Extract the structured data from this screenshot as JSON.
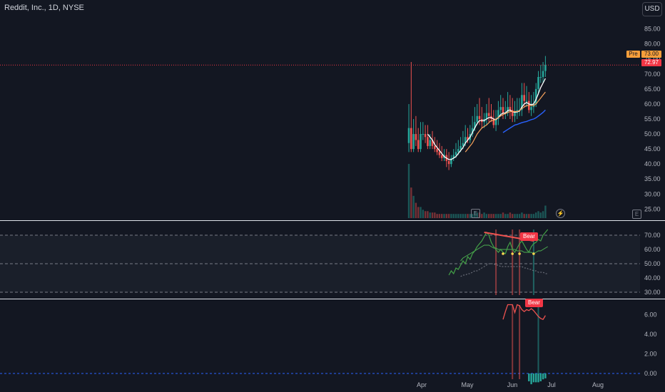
{
  "header": {
    "title": "Reddit, Inc., 1D, NYSE",
    "currency_button": "USD"
  },
  "price_labels": {
    "pre_tag": "Pre",
    "pre_value": "73.00",
    "last_value": "72.97"
  },
  "markers": {
    "bear_label": "Bear",
    "earnings_icon": "E"
  },
  "colors": {
    "up": "#26a69a",
    "down": "#ef5350",
    "background": "#131722",
    "ema_white": "#ffffff",
    "ema_orange": "#f7a35c",
    "sma_blue": "#2962ff",
    "rsi_line": "#ef5350",
    "rsi_upper": "#43a047"
  },
  "chart_data": [
    {
      "type": "candlestick",
      "title": "Reddit, Inc., 1D, NYSE",
      "x_ticks": [
        "Apr",
        "May",
        "Jun",
        "Jul",
        "Aug"
      ],
      "y_ticks": [
        "25.00",
        "30.00",
        "35.00",
        "40.00",
        "45.00",
        "50.00",
        "55.00",
        "60.00",
        "65.00",
        "70.00",
        "75.00",
        "80.00",
        "85.00"
      ],
      "ylim": [
        22,
        88
      ],
      "grid": false,
      "price": {
        "open": [
          47,
          52,
          45,
          50,
          48,
          45,
          50,
          50,
          49,
          46,
          48,
          46,
          45,
          44,
          43,
          42,
          43,
          41,
          40,
          42,
          43,
          44,
          45,
          46,
          47,
          49,
          48,
          50,
          52,
          54,
          56,
          55,
          54,
          55,
          57,
          56,
          55,
          53,
          55,
          58,
          59,
          57,
          57,
          59,
          58,
          56,
          57,
          58,
          58,
          63,
          61,
          61,
          58,
          59,
          60,
          65,
          69,
          69,
          71
        ],
        "close": [
          52,
          45,
          50,
          48,
          45,
          50,
          50,
          49,
          46,
          48,
          46,
          45,
          44,
          43,
          42,
          43,
          41,
          40,
          42,
          43,
          44,
          45,
          46,
          47,
          49,
          48,
          50,
          52,
          54,
          56,
          55,
          54,
          55,
          57,
          56,
          55,
          53,
          55,
          58,
          59,
          57,
          57,
          59,
          58,
          56,
          57,
          58,
          58,
          63,
          61,
          61,
          58,
          59,
          60,
          65,
          69,
          69,
          71,
          72.97
        ],
        "high": [
          60,
          74,
          55,
          56,
          52,
          54,
          54,
          53,
          53,
          50,
          51,
          49,
          48,
          47,
          46,
          45,
          45,
          44,
          43,
          45,
          47,
          48,
          49,
          51,
          53,
          52,
          53,
          56,
          59,
          60,
          62,
          59,
          57,
          60,
          62,
          60,
          58,
          58,
          61,
          63,
          62,
          61,
          64,
          63,
          62,
          61,
          62,
          62,
          67,
          67,
          66,
          64,
          63,
          64,
          67,
          71,
          73,
          74,
          76
        ],
        "low": [
          44,
          44,
          44,
          46,
          44,
          44,
          48,
          47,
          45,
          45,
          45,
          44,
          43,
          42,
          41,
          41,
          39,
          38,
          39,
          41,
          42,
          43,
          44,
          45,
          46,
          47,
          47,
          49,
          51,
          53,
          53,
          52,
          52,
          53,
          54,
          54,
          52,
          51,
          53,
          56,
          55,
          55,
          56,
          55,
          54,
          54,
          55,
          56,
          56,
          59,
          59,
          57,
          56,
          57,
          59,
          63,
          67,
          67,
          69
        ]
      },
      "series": [
        {
          "values": [
            null,
            null,
            null,
            null,
            null,
            null,
            null,
            null,
            50,
            49,
            48,
            46.5,
            45.5,
            44.5,
            43.5,
            42.5,
            42,
            41.5,
            41.5,
            42,
            42.5,
            43.5,
            44.5,
            45.5,
            47,
            48,
            49,
            50.5,
            52,
            53.5,
            54.5,
            54.5,
            54.5,
            55,
            55.5,
            55.5,
            55,
            54.8,
            55.5,
            56.5,
            57,
            57,
            57.8,
            58,
            57.5,
            57.2,
            57.4,
            57.6,
            59,
            60,
            60.5,
            60,
            59.8,
            60,
            61.5,
            63.5,
            65.5,
            67,
            68.5
          ]
        },
        {
          "values": [
            null,
            null,
            null,
            null,
            null,
            null,
            null,
            null,
            null,
            null,
            null,
            null,
            null,
            null,
            null,
            null,
            null,
            null,
            null,
            null,
            null,
            null,
            null,
            null,
            44,
            45,
            46,
            47,
            48.5,
            50,
            51,
            52,
            52.5,
            53,
            53.8,
            54.5,
            54.5,
            55,
            55.5,
            56,
            56.5,
            56.8,
            57.2,
            57.5,
            57.5,
            57.5,
            57.5,
            57.8,
            58.5,
            59,
            59.5,
            59.5,
            59.5,
            59.5,
            60,
            61,
            62,
            63,
            64
          ]
        },
        {
          "values": [
            null,
            null,
            null,
            null,
            null,
            null,
            null,
            null,
            null,
            null,
            null,
            null,
            null,
            null,
            null,
            null,
            null,
            null,
            null,
            null,
            null,
            null,
            null,
            null,
            null,
            null,
            null,
            null,
            null,
            null,
            null,
            null,
            null,
            null,
            null,
            null,
            null,
            null,
            null,
            null,
            50.5,
            51,
            51.5,
            52,
            52.5,
            53,
            53.2,
            53.5,
            53.8,
            54,
            54.2,
            54.5,
            54.8,
            55,
            55.4,
            56,
            56.6,
            57.2,
            58
          ]
        }
      ],
      "volume": [
        39,
        22,
        16,
        11,
        8,
        8,
        6,
        5,
        5,
        4,
        4,
        4,
        3,
        3,
        3,
        3,
        3,
        3,
        3,
        3,
        3,
        3,
        3,
        3,
        3,
        3,
        3,
        3,
        5,
        4,
        4,
        3,
        4,
        3,
        3,
        3,
        3,
        3,
        3,
        3,
        4,
        3,
        3,
        4,
        3,
        3,
        3,
        3,
        4,
        3,
        3,
        3,
        3,
        3,
        4,
        5,
        4,
        5,
        9
      ]
    },
    {
      "type": "line",
      "y_ticks": [
        "30.00",
        "40.00",
        "50.00",
        "60.00",
        "70.00"
      ],
      "ylim": [
        28,
        78
      ],
      "levels": [
        70,
        50,
        30
      ],
      "series": [
        {
          "start_index": 17,
          "values": [
            42,
            45,
            43,
            47,
            46,
            49,
            52,
            50,
            55,
            53,
            57,
            59,
            62,
            64,
            66,
            69,
            72,
            70,
            65,
            62,
            60,
            58,
            60,
            58,
            57,
            62,
            65,
            60,
            58,
            61,
            64,
            66,
            63,
            60,
            58,
            62,
            64,
            65,
            67,
            66,
            70,
            72,
            74
          ]
        },
        {
          "start_index": 22,
          "values": [
            52,
            54,
            55,
            56,
            57,
            58,
            59,
            60,
            61,
            62,
            63,
            63,
            63,
            62,
            61,
            61,
            60,
            60,
            60,
            60,
            60,
            60,
            60,
            60,
            59,
            59,
            59,
            58,
            58,
            58,
            58,
            57,
            58,
            59,
            59,
            60,
            61,
            62
          ]
        },
        {
          "start_index": 22,
          "values": [
            41,
            42,
            42,
            43,
            43,
            44,
            45,
            45,
            46,
            47,
            48,
            49,
            50,
            50,
            50,
            49,
            49,
            48,
            48,
            48,
            48,
            48,
            48,
            48,
            48,
            48,
            48,
            47,
            47,
            46,
            46,
            45,
            45,
            44,
            44,
            44,
            43,
            43
          ]
        }
      ]
    },
    {
      "type": "line",
      "y_ticks": [
        "0.00",
        "2.00",
        "4.00",
        "6.00"
      ],
      "ylim": [
        -1.6,
        7.4
      ],
      "series": [
        {
          "start_index": 40,
          "values": [
            5.5,
            6.3,
            7,
            7,
            7,
            6.2,
            7,
            6.9,
            6.5,
            6.3,
            6.5,
            6.4,
            6.6,
            6.4,
            6.1,
            5.8,
            5.6,
            5.5,
            5.9
          ]
        }
      ],
      "histogram": [
        0,
        0,
        0,
        0,
        0,
        0,
        0,
        0,
        0,
        0,
        0,
        -0.8,
        -1.1,
        -0.9,
        -0.9,
        -0.9,
        -0.8,
        -0.6,
        -0.5
      ]
    }
  ]
}
